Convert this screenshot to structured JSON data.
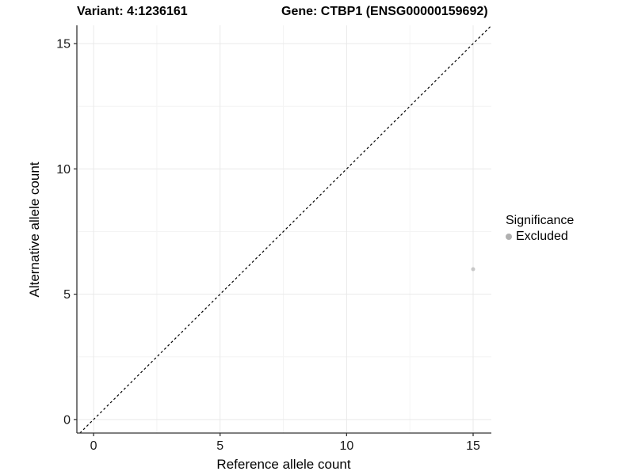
{
  "header": {
    "variant_label": "Variant: 4:1236161",
    "gene_label": "Gene: CTBP1 (ENSG00000159692)"
  },
  "chart_data": {
    "type": "scatter",
    "title": "Variant: 4:1236161   Gene: CTBP1 (ENSG00000159692)",
    "xlabel": "Reference allele count",
    "ylabel": "Alternative allele count",
    "xlim": [
      -0.66,
      15.72
    ],
    "ylim": [
      -0.54,
      15.73
    ],
    "x_ticks": [
      0,
      5,
      10,
      15
    ],
    "y_ticks": [
      0,
      5,
      10,
      15
    ],
    "x_minor_ticks": [
      2.5,
      7.5,
      12.5
    ],
    "y_minor_ticks": [
      2.5,
      7.5,
      12.5
    ],
    "grid": true,
    "identity_line": {
      "style": "dashed",
      "color": "#000000",
      "dash": "3 3"
    },
    "series": [
      {
        "name": "Excluded",
        "color": "#c8c8c8",
        "point_radius": 2.5,
        "points": [
          {
            "x": 15,
            "y": 6
          }
        ]
      }
    ],
    "legend": {
      "title": "Significance",
      "position": "right",
      "items": [
        {
          "label": "Excluded",
          "color": "#b0b0b0"
        }
      ]
    },
    "colors": {
      "grid_major": "#e9e9e9",
      "grid_minor": "#f4f4f4",
      "axis_line": "#333333",
      "tick_mark": "#333333",
      "tick_text": "#1a1a1a",
      "background": "#ffffff"
    }
  }
}
